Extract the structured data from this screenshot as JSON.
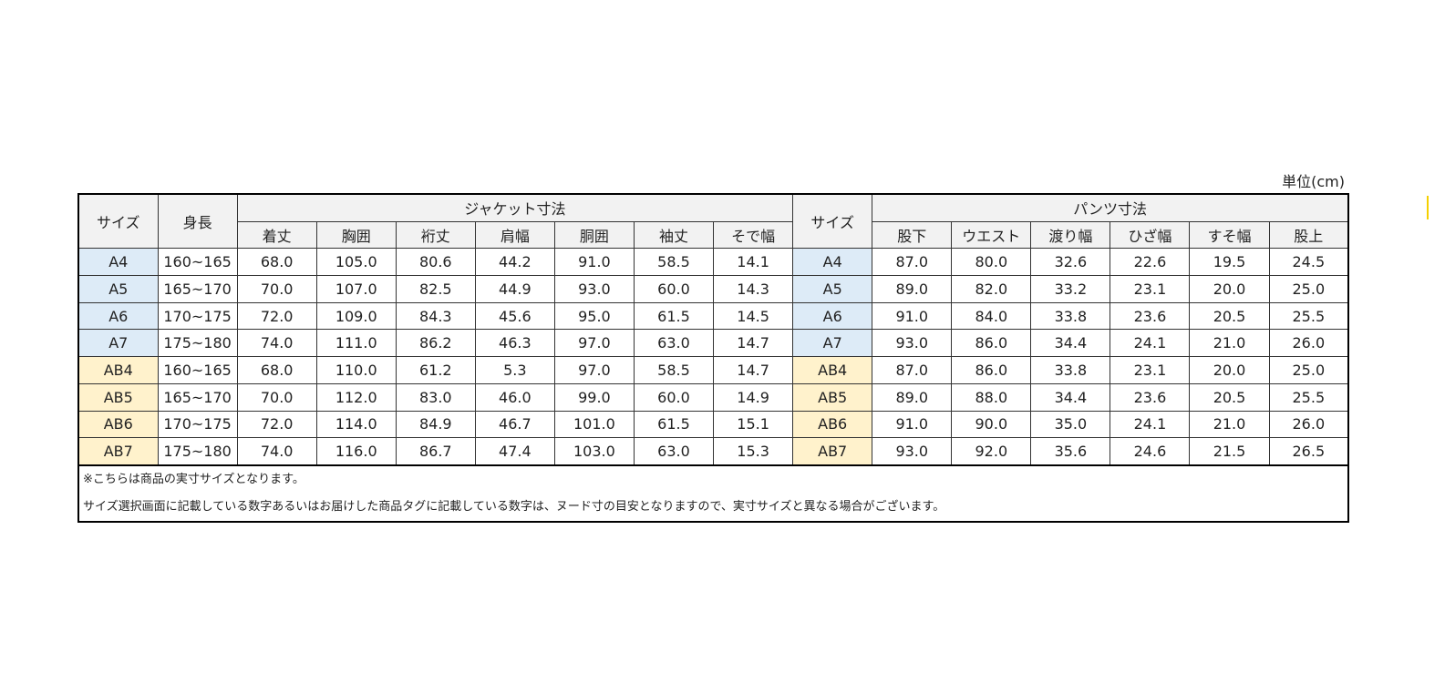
{
  "header": {
    "unit": "単位(cm)"
  },
  "table": {
    "group_headers": [
      "サイズ",
      "身長",
      "ジャケット寸法",
      "サイズ",
      "パンツ寸法"
    ],
    "column_headers": [
      "着丈",
      "胸囲",
      "裄丈",
      "肩幅",
      "胴囲",
      "袖丈",
      "そで幅",
      "股下",
      "ウエスト",
      "渡り幅",
      "ひざ幅",
      "すそ幅",
      "股上"
    ],
    "rows": [
      {
        "color": "#ddebf7",
        "cells": [
          "A4",
          "160~165",
          "68.0",
          "105.0",
          "80.6",
          "44.2",
          "91.0",
          "58.5",
          "14.1",
          "A4",
          "87.0",
          "80.0",
          "32.6",
          "22.6",
          "19.5",
          "24.5"
        ]
      },
      {
        "color": "#ddebf7",
        "cells": [
          "A5",
          "165~170",
          "70.0",
          "107.0",
          "82.5",
          "44.9",
          "93.0",
          "60.0",
          "14.3",
          "A5",
          "89.0",
          "82.0",
          "33.2",
          "23.1",
          "20.0",
          "25.0"
        ]
      },
      {
        "color": "#ddebf7",
        "cells": [
          "A6",
          "170~175",
          "72.0",
          "109.0",
          "84.3",
          "45.6",
          "95.0",
          "61.5",
          "14.5",
          "A6",
          "91.0",
          "84.0",
          "33.8",
          "23.6",
          "20.5",
          "25.5"
        ]
      },
      {
        "color": "#ddebf7",
        "cells": [
          "A7",
          "175~180",
          "74.0",
          "111.0",
          "86.2",
          "46.3",
          "97.0",
          "63.0",
          "14.7",
          "A7",
          "93.0",
          "86.0",
          "34.4",
          "24.1",
          "21.0",
          "26.0"
        ]
      },
      {
        "color": "#fff2cc",
        "cells": [
          "AB4",
          "160~165",
          "68.0",
          "110.0",
          "61.2",
          "5.3",
          "97.0",
          "58.5",
          "14.7",
          "AB4",
          "87.0",
          "86.0",
          "33.8",
          "23.1",
          "20.0",
          "25.0"
        ]
      },
      {
        "color": "#fff2cc",
        "cells": [
          "AB5",
          "165~170",
          "70.0",
          "112.0",
          "83.0",
          "46.0",
          "99.0",
          "60.0",
          "14.9",
          "AB5",
          "89.0",
          "88.0",
          "34.4",
          "23.6",
          "20.5",
          "25.5"
        ]
      },
      {
        "color": "#fff2cc",
        "cells": [
          "AB6",
          "170~175",
          "72.0",
          "114.0",
          "84.9",
          "46.7",
          "101.0",
          "61.5",
          "15.1",
          "AB6",
          "91.0",
          "90.0",
          "35.0",
          "24.1",
          "21.0",
          "26.0"
        ]
      },
      {
        "color": "#fff2cc",
        "cells": [
          "AB7",
          "175~180",
          "74.0",
          "116.0",
          "86.7",
          "47.4",
          "103.0",
          "63.0",
          "15.3",
          "AB7",
          "93.0",
          "92.0",
          "35.6",
          "24.6",
          "21.5",
          "26.5"
        ]
      }
    ],
    "notes": [
      "※こちらは商品の実寸サイズとなります。",
      "サイズ選択画面に記載している数字あるいはお届けした商品タグに記載している数字は、ヌード寸の目安となりますので、実寸サイズと異なる場合がございます。"
    ]
  }
}
